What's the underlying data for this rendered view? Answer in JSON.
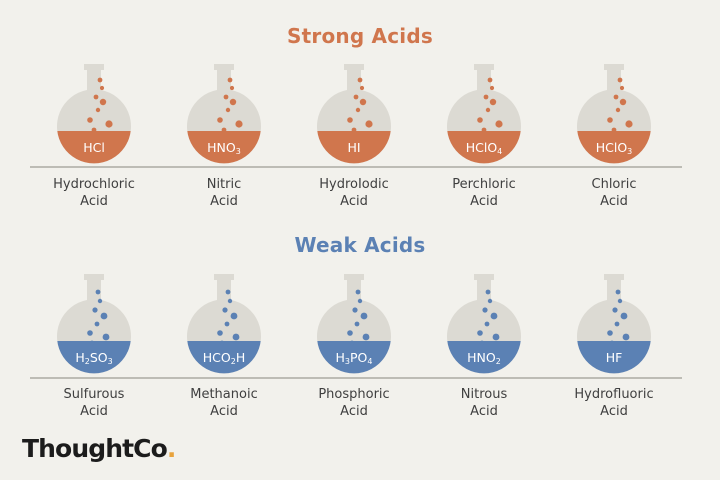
{
  "sections": {
    "strong_title": "Strong Acids",
    "weak_title": "Weak Acids"
  },
  "colors": {
    "strong": "#d0764d",
    "weak": "#5b81b4",
    "flask": "#dcdad3"
  },
  "strong_acids": [
    {
      "formula": [
        [
          "HCl",
          ""
        ]
      ],
      "name_line1": "Hydrochloric",
      "name_line2": "Acid"
    },
    {
      "formula": [
        [
          "HNO",
          ""
        ],
        [
          "",
          "3"
        ]
      ],
      "name_line1": "Nitric",
      "name_line2": "Acid"
    },
    {
      "formula": [
        [
          "HI",
          ""
        ]
      ],
      "name_line1": "HydroIodic",
      "name_line2": "Acid"
    },
    {
      "formula": [
        [
          "HClO",
          ""
        ],
        [
          "",
          "4"
        ]
      ],
      "name_line1": "Perchloric",
      "name_line2": "Acid"
    },
    {
      "formula": [
        [
          "HClO",
          ""
        ],
        [
          "",
          "3"
        ]
      ],
      "name_line1": "Chloric",
      "name_line2": "Acid"
    }
  ],
  "weak_acids": [
    {
      "formula": [
        [
          "H",
          ""
        ],
        [
          "",
          "2"
        ],
        [
          "SO",
          ""
        ],
        [
          "",
          "3"
        ]
      ],
      "name_line1": "Sulfurous",
      "name_line2": "Acid"
    },
    {
      "formula": [
        [
          "HCO",
          ""
        ],
        [
          "",
          "2"
        ],
        [
          "H",
          ""
        ]
      ],
      "name_line1": "Methanoic",
      "name_line2": "Acid"
    },
    {
      "formula": [
        [
          "H",
          ""
        ],
        [
          "",
          "3"
        ],
        [
          "PO",
          ""
        ],
        [
          "",
          "4"
        ]
      ],
      "name_line1": "Phosphoric",
      "name_line2": "Acid"
    },
    {
      "formula": [
        [
          "HNO",
          ""
        ],
        [
          "",
          "2"
        ]
      ],
      "name_line1": "Nitrous",
      "name_line2": "Acid"
    },
    {
      "formula": [
        [
          "HF",
          ""
        ]
      ],
      "name_line1": "Hydrofluoric",
      "name_line2": "Acid"
    }
  ],
  "logo": {
    "text": "ThoughtCo",
    "dot": "."
  }
}
